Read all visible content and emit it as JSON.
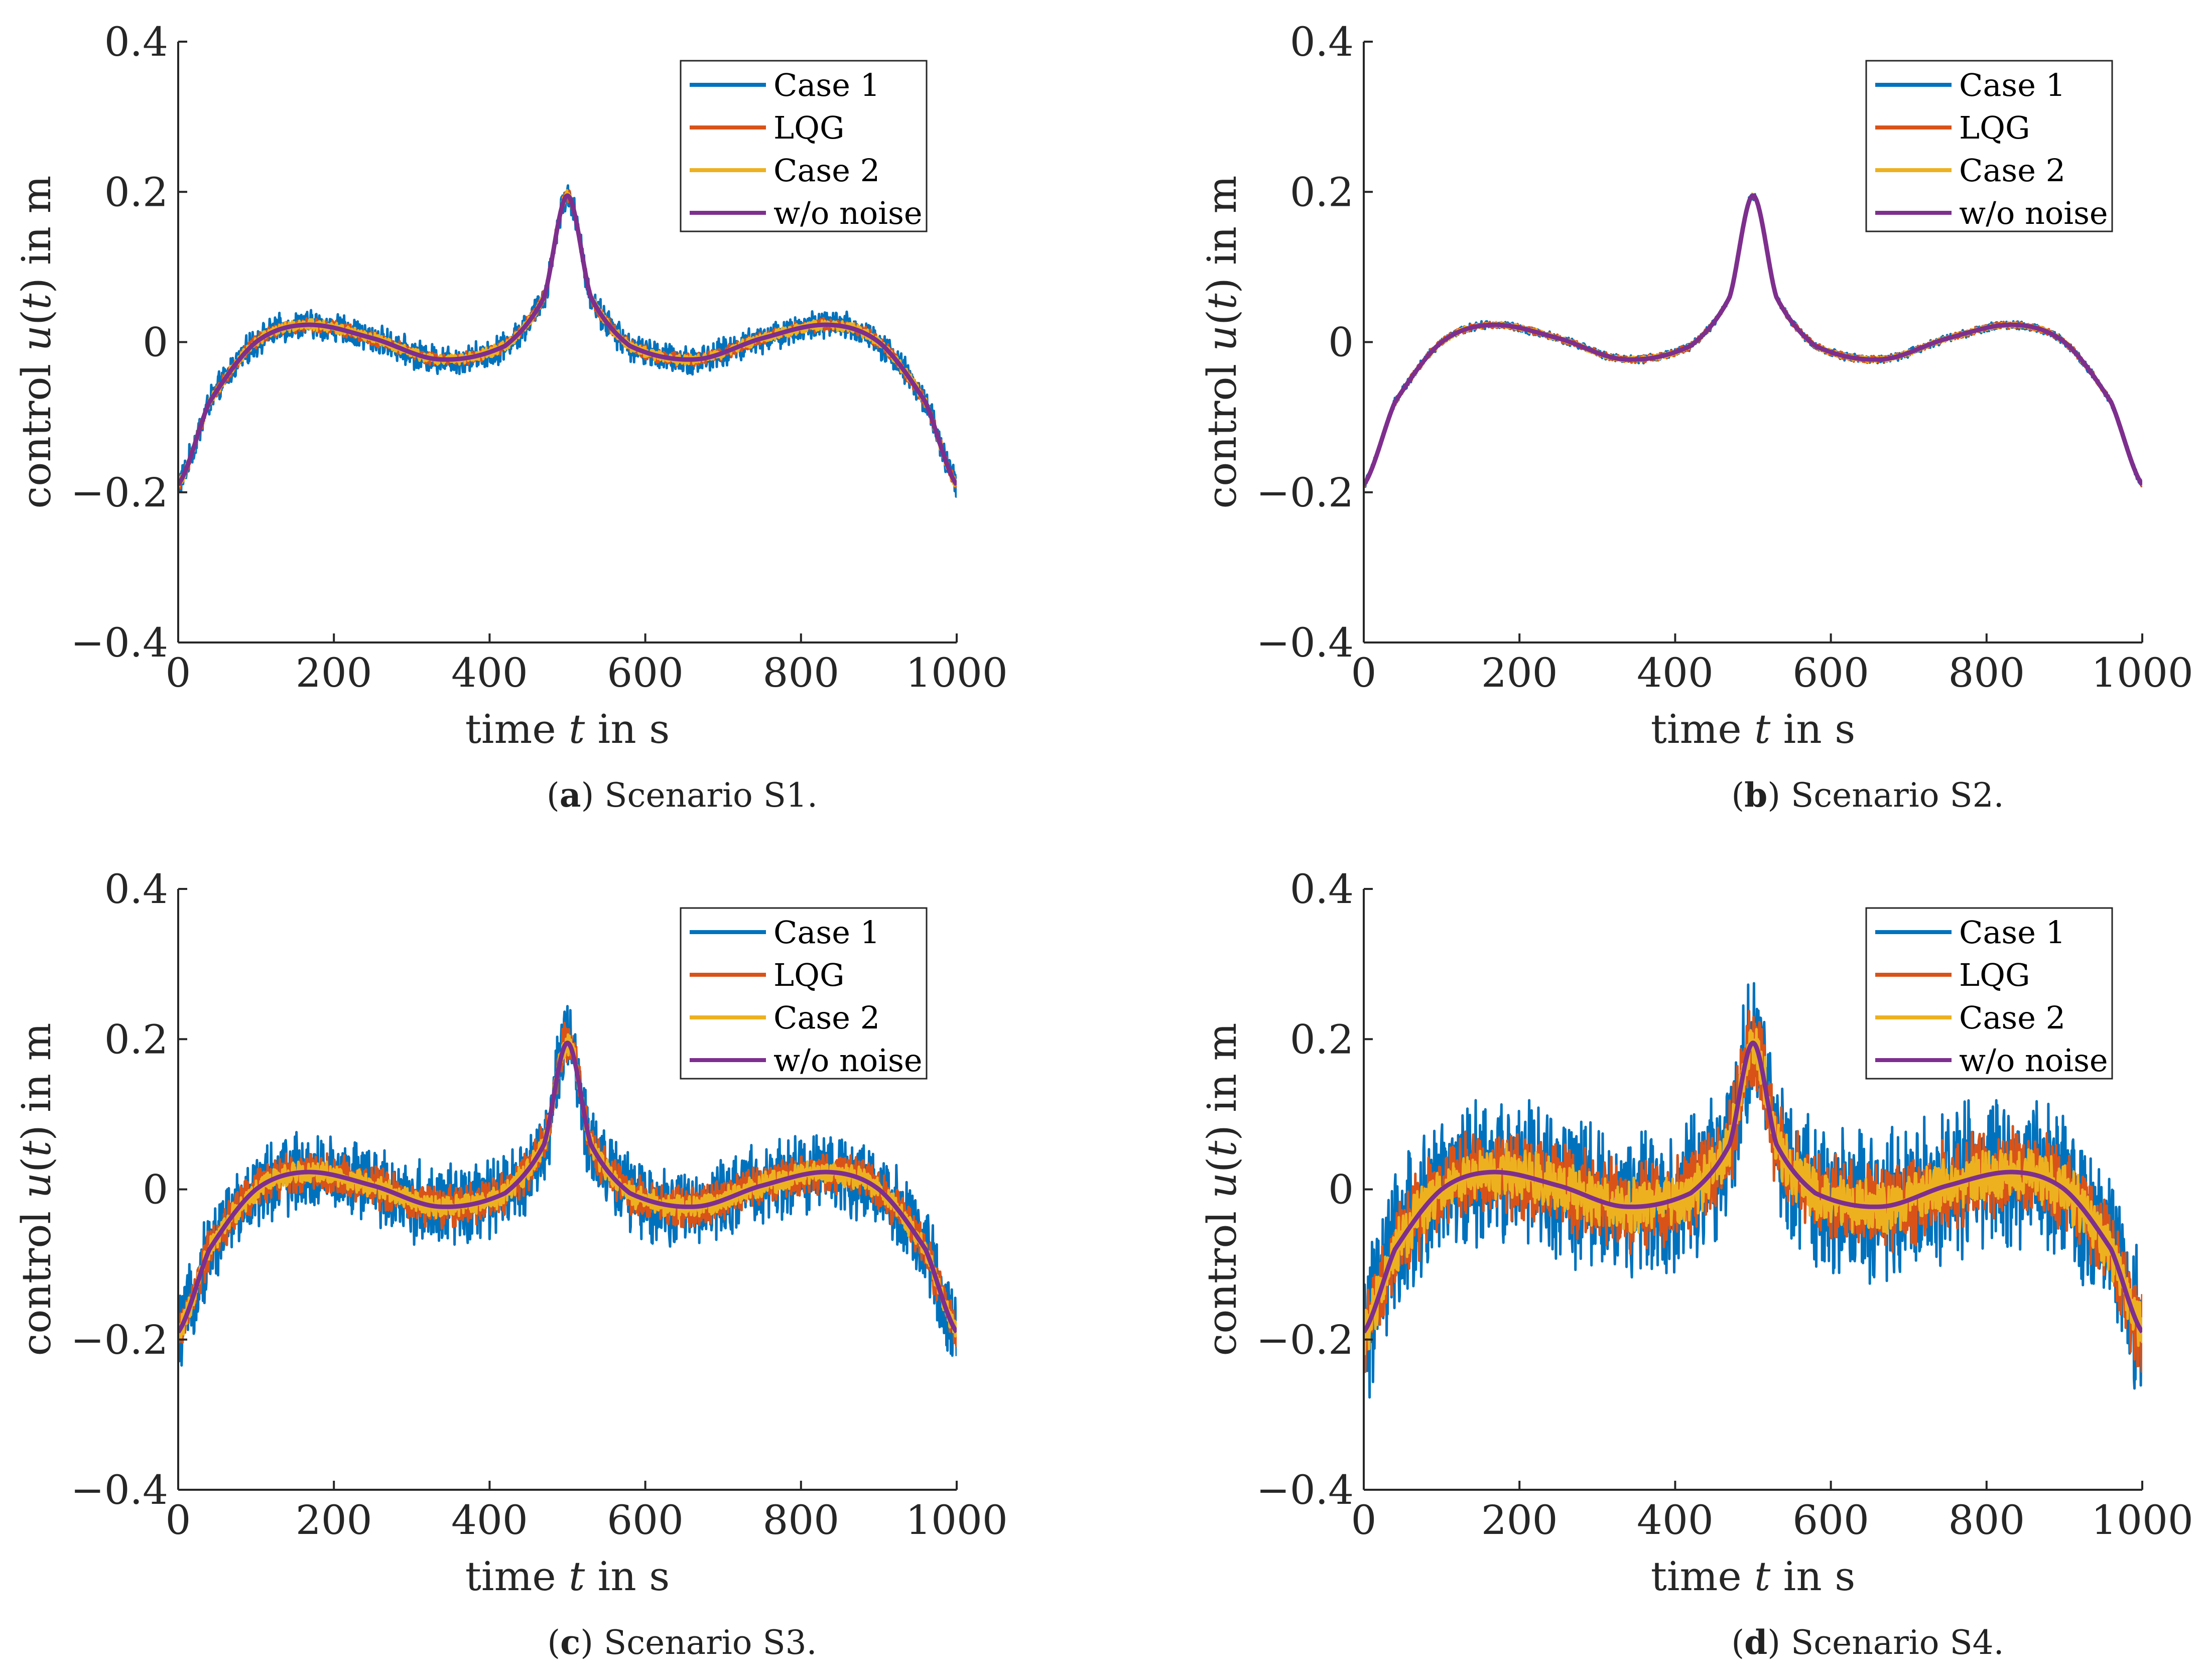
{
  "chart_data": [
    {
      "id": "a",
      "type": "line",
      "caption_letter": "a",
      "caption_text": "Scenario S1.",
      "xlabel": "time t in s",
      "ylabel": "control u(t) in m",
      "xlim": [
        0,
        1000
      ],
      "ylim": [
        -0.4,
        0.4
      ],
      "xticks": [
        0,
        200,
        400,
        600,
        800,
        1000
      ],
      "yticks": [
        -0.4,
        -0.2,
        0,
        0.2,
        0.4
      ],
      "xtick_labels": [
        "0",
        "200",
        "400",
        "600",
        "800",
        "1000"
      ],
      "ytick_labels": [
        "−0.4",
        "−0.2",
        "0",
        "0.2",
        "0.4"
      ],
      "legend_position": "top-right",
      "series": [
        {
          "name": "Case 1",
          "color": "#0072BD",
          "noise_amplitude": 0.022
        },
        {
          "name": "LQG",
          "color": "#D95319",
          "noise_amplitude": 0.01
        },
        {
          "name": "Case 2",
          "color": "#EDB120",
          "noise_amplitude": 0.008
        },
        {
          "name": "w/o noise",
          "color": "#7E2F8E",
          "noise_amplitude": 0
        }
      ]
    },
    {
      "id": "b",
      "type": "line",
      "caption_letter": "b",
      "caption_text": "Scenario S2.",
      "xlabel": "time t in s",
      "ylabel": "control u(t) in m",
      "xlim": [
        0,
        1000
      ],
      "ylim": [
        -0.4,
        0.4
      ],
      "xticks": [
        0,
        200,
        400,
        600,
        800,
        1000
      ],
      "yticks": [
        -0.4,
        -0.2,
        0,
        0.2,
        0.4
      ],
      "xtick_labels": [
        "0",
        "200",
        "400",
        "600",
        "800",
        "1000"
      ],
      "ytick_labels": [
        "−0.4",
        "−0.2",
        "0",
        "0.2",
        "0.4"
      ],
      "legend_position": "top-right",
      "series": [
        {
          "name": "Case 1",
          "color": "#0072BD",
          "noise_amplitude": 0.006
        },
        {
          "name": "LQG",
          "color": "#D95319",
          "noise_amplitude": 0.005
        },
        {
          "name": "Case 2",
          "color": "#EDB120",
          "noise_amplitude": 0.004
        },
        {
          "name": "w/o noise",
          "color": "#7E2F8E",
          "noise_amplitude": 0
        }
      ]
    },
    {
      "id": "c",
      "type": "line",
      "caption_letter": "c",
      "caption_text": "Scenario S3.",
      "xlabel": "time t in s",
      "ylabel": "control u(t) in m",
      "xlim": [
        0,
        1000
      ],
      "ylim": [
        -0.4,
        0.4
      ],
      "xticks": [
        0,
        200,
        400,
        600,
        800,
        1000
      ],
      "yticks": [
        -0.4,
        -0.2,
        0,
        0.2,
        0.4
      ],
      "xtick_labels": [
        "0",
        "200",
        "400",
        "600",
        "800",
        "1000"
      ],
      "ytick_labels": [
        "−0.4",
        "−0.2",
        "0",
        "0.2",
        "0.4"
      ],
      "legend_position": "top-right",
      "series": [
        {
          "name": "Case 1",
          "color": "#0072BD",
          "noise_amplitude": 0.06
        },
        {
          "name": "LQG",
          "color": "#D95319",
          "noise_amplitude": 0.032
        },
        {
          "name": "Case 2",
          "color": "#EDB120",
          "noise_amplitude": 0.018
        },
        {
          "name": "w/o noise",
          "color": "#7E2F8E",
          "noise_amplitude": 0
        }
      ]
    },
    {
      "id": "d",
      "type": "line",
      "caption_letter": "d",
      "caption_text": "Scenario S4.",
      "xlabel": "time t in s",
      "ylabel": "control u(t) in m",
      "xlim": [
        0,
        1000
      ],
      "ylim": [
        -0.4,
        0.4
      ],
      "xticks": [
        0,
        200,
        400,
        600,
        800,
        1000
      ],
      "yticks": [
        -0.4,
        -0.2,
        0,
        0.2,
        0.4
      ],
      "xtick_labels": [
        "0",
        "200",
        "400",
        "600",
        "800",
        "1000"
      ],
      "ytick_labels": [
        "−0.4",
        "−0.2",
        "0",
        "0.2",
        "0.4"
      ],
      "legend_position": "top-right",
      "series": [
        {
          "name": "Case 1",
          "color": "#0072BD",
          "noise_amplitude": 0.11
        },
        {
          "name": "LQG",
          "color": "#D95319",
          "noise_amplitude": 0.065
        },
        {
          "name": "Case 2",
          "color": "#EDB120",
          "noise_amplitude": 0.04
        },
        {
          "name": "w/o noise",
          "color": "#7E2F8E",
          "noise_amplitude": 0
        }
      ]
    }
  ],
  "nominal_curve": {
    "description_points_t": [
      0,
      40,
      100,
      165,
      250,
      335,
      420,
      470,
      500,
      530,
      580,
      665,
      750,
      835,
      900,
      960,
      1000
    ],
    "description_points_u": [
      -0.19,
      -0.08,
      0.0,
      0.023,
      0.005,
      -0.023,
      -0.005,
      0.06,
      0.195,
      0.06,
      -0.005,
      -0.023,
      0.005,
      0.023,
      0.0,
      -0.08,
      -0.19
    ]
  }
}
